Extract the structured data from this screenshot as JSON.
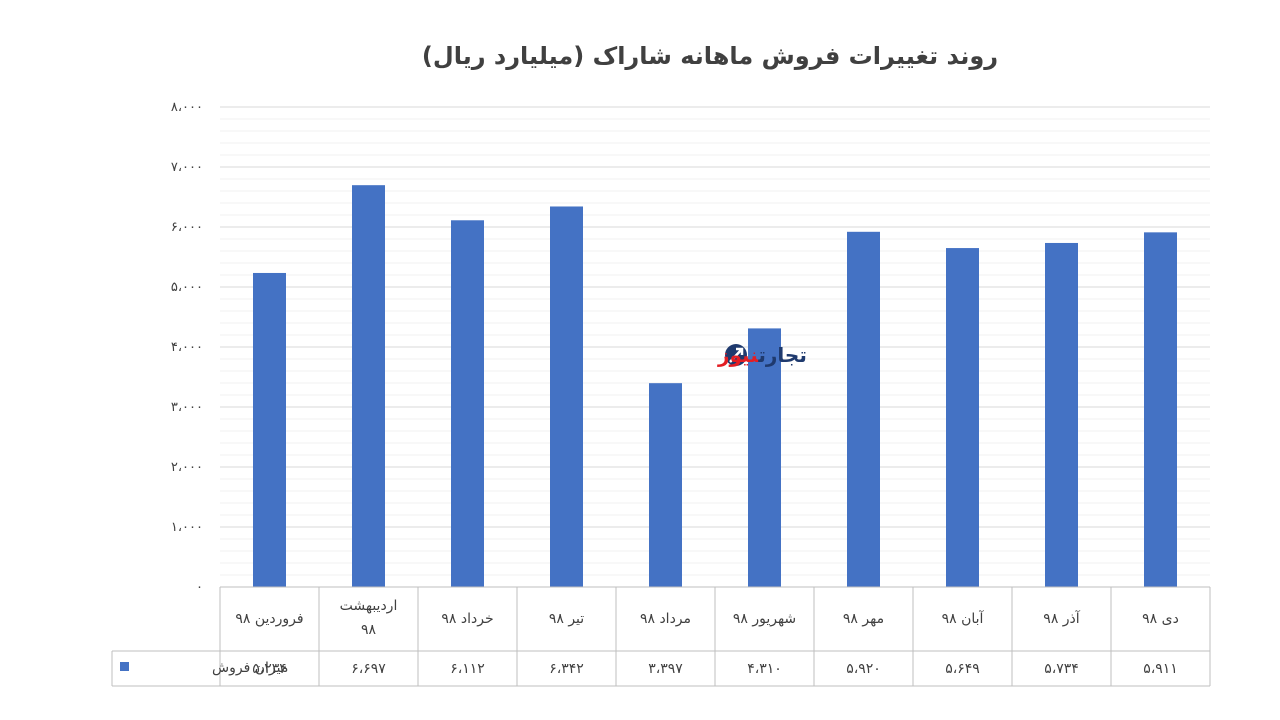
{
  "chart_data": {
    "type": "bar",
    "title": "روند تغییرات فروش ماهانه شاراک (میلیارد ریال)",
    "xlabel": "",
    "ylabel": "",
    "ylim": [
      0,
      8000
    ],
    "y_ticks": [
      0,
      1000,
      2000,
      3000,
      4000,
      5000,
      6000,
      7000,
      8000
    ],
    "y_tick_labels": [
      "۰",
      "۱،۰۰۰",
      "۲،۰۰۰",
      "۳،۰۰۰",
      "۴،۰۰۰",
      "۵،۰۰۰",
      "۶،۰۰۰",
      "۷،۰۰۰",
      "۸،۰۰۰"
    ],
    "categories": [
      [
        "فروردین ۹۸"
      ],
      [
        "اردیبهشت",
        "۹۸"
      ],
      [
        "خرداد ۹۸"
      ],
      [
        "تیر ۹۸"
      ],
      [
        "مرداد ۹۸"
      ],
      [
        "شهریور ۹۸"
      ],
      [
        "مهر ۹۸"
      ],
      [
        "آبان ۹۸"
      ],
      [
        "آذر ۹۸"
      ],
      [
        "دی ۹۸"
      ]
    ],
    "series": [
      {
        "name": "میزان فروش",
        "color": "#4472c4",
        "values": [
          5234,
          6697,
          6112,
          6342,
          3397,
          4310,
          5920,
          5649,
          5734,
          5911
        ],
        "value_labels": [
          "۵،۲۳۴",
          "۶،۶۹۷",
          "۶،۱۱۲",
          "۶،۳۴۲",
          "۳،۳۹۷",
          "۴،۳۱۰",
          "۵،۹۲۰",
          "۵،۶۴۹",
          "۵،۷۳۴",
          "۵،۹۱۱"
        ]
      }
    ],
    "grid": true,
    "legend": "data-table-left"
  },
  "watermark": {
    "part1": "تجارت",
    "part2": "نیوز"
  }
}
